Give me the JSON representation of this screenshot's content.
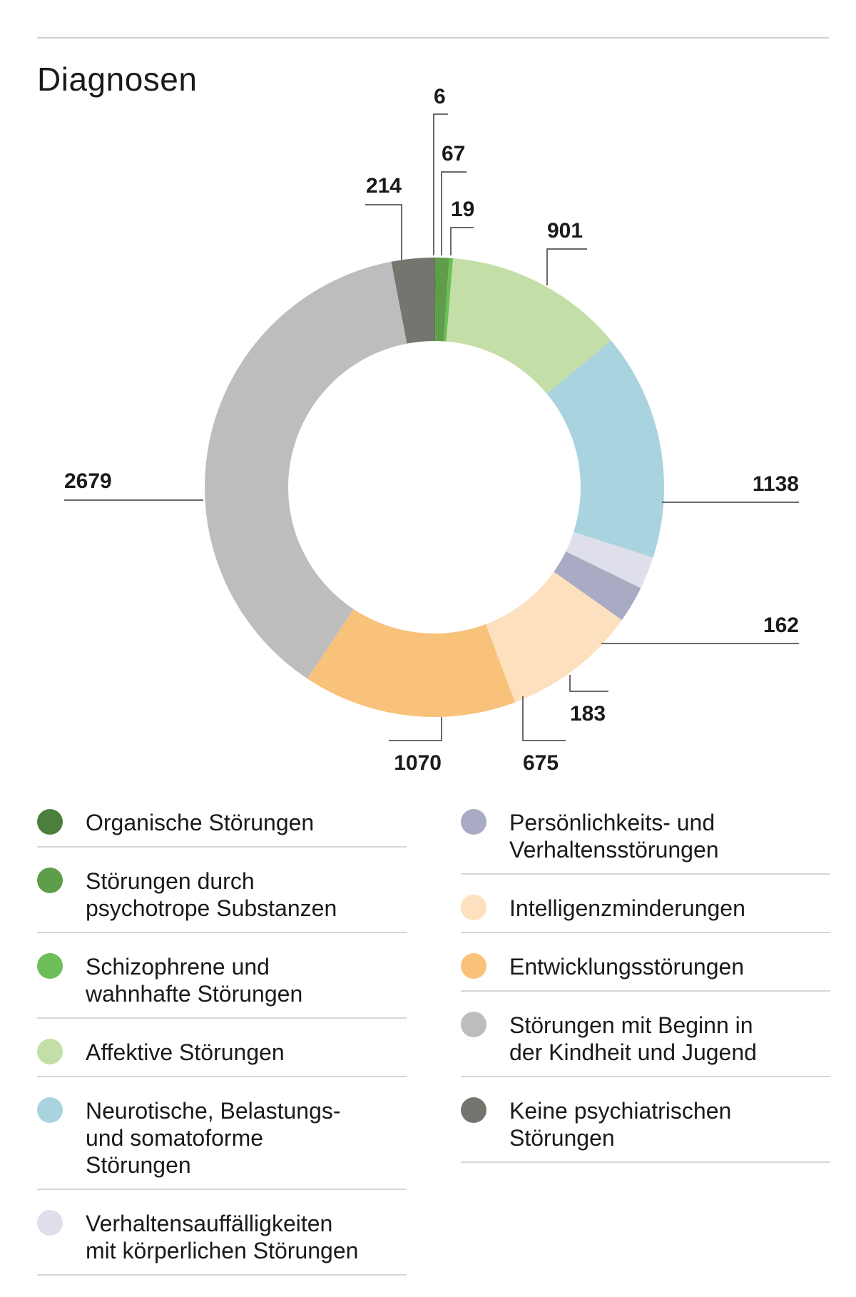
{
  "chart_data": {
    "type": "pie",
    "title": "Diagnosen",
    "categories": [
      "Organische Störungen",
      "Störungen durch\npsychotrope Substanzen",
      "Schizophrene und\nwahnhafte Störungen",
      "Affektive Störungen",
      "Neurotische, Belastungs-\nund somatoforme\nStörungen",
      "Verhaltensauffälligkeiten\nmit körperlichen Störungen",
      "Persönlichkeits- und\nVerhaltensstörungen",
      "Intelligenzminderungen",
      "Entwicklungsstörungen",
      "Störungen mit Beginn in\nder Kindheit und Jugend",
      "Keine psychiatrischen\nStörungen"
    ],
    "values": [
      6,
      67,
      19,
      901,
      1138,
      162,
      183,
      675,
      1070,
      2679,
      214
    ],
    "colors": [
      "#4d7f3c",
      "#5e9e4b",
      "#6dbd58",
      "#c3dea7",
      "#a9d3de",
      "#dfdfeb",
      "#a8abc3",
      "#fde0bd",
      "#f8c27a",
      "#bdbdbd",
      "#75746f"
    ],
    "legend_placement": "bottom",
    "legend_left": [
      0,
      1,
      2,
      3,
      4,
      5
    ],
    "legend_right": [
      6,
      7,
      8,
      9,
      10
    ]
  }
}
